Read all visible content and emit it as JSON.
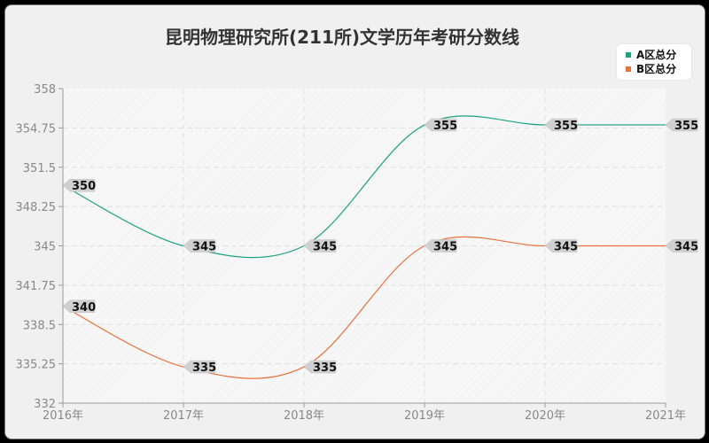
{
  "title": "昆明物理研究所(211所)文学历年考研分数线",
  "legend": [
    {
      "label": "A区总分",
      "color": "#1aa37a"
    },
    {
      "label": "B区总分",
      "color": "#e8703a"
    }
  ],
  "chart_data": {
    "type": "line",
    "title": "昆明物理研究所(211所)文学历年考研分数线",
    "xlabel": "",
    "ylabel": "",
    "categories": [
      "2016年",
      "2017年",
      "2018年",
      "2019年",
      "2020年",
      "2021年"
    ],
    "series": [
      {
        "name": "A区总分",
        "color": "#1aa37a",
        "values": [
          350,
          345,
          345,
          355,
          355,
          355
        ]
      },
      {
        "name": "B区总分",
        "color": "#e8703a",
        "values": [
          340,
          335,
          335,
          345,
          345,
          345
        ]
      }
    ],
    "ylim": [
      332,
      358
    ],
    "yticks": [
      "358",
      "354.75",
      "351.5",
      "348.25",
      "345",
      "341.75",
      "338.5",
      "335.25",
      "332"
    ],
    "grid": true,
    "legend_position": "top-right",
    "smooth": true
  }
}
